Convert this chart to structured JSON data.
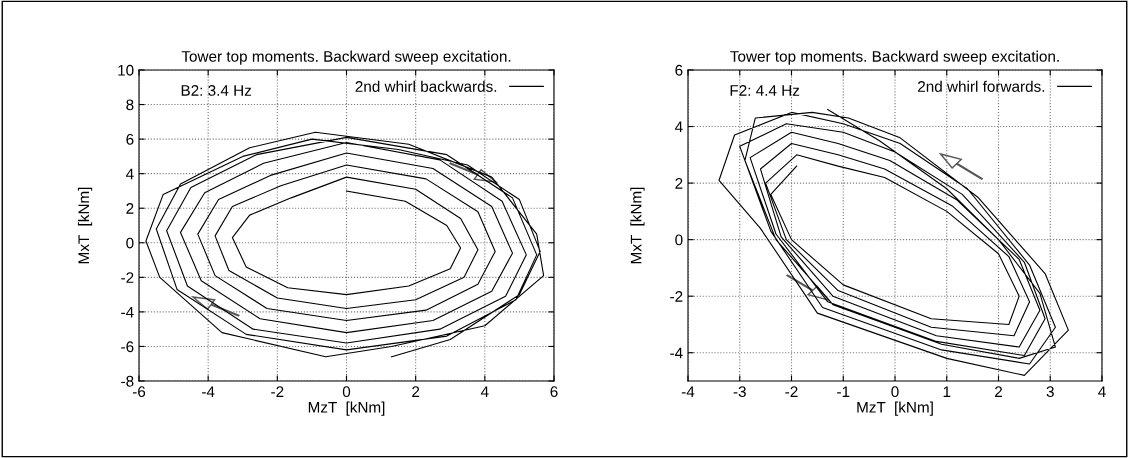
{
  "chart_data": [
    {
      "type": "line",
      "title": "Tower top moments. Backward sweep excitation.",
      "xlabel": "MzT  [kNm]",
      "ylabel": "MxT  [kNm]",
      "annotations": [
        "B2: 3.4 Hz"
      ],
      "xlim": [
        -6,
        6
      ],
      "ylim": [
        -8,
        10
      ],
      "xticks": [
        -6,
        -4,
        -2,
        0,
        2,
        4,
        6
      ],
      "yticks": [
        -8,
        -6,
        -4,
        -2,
        0,
        2,
        4,
        6,
        8,
        10
      ],
      "grid": true,
      "legend": "top right",
      "series": [
        {
          "name": "2nd whirl backwards.",
          "color": "#000000",
          "x": [
            0,
            1.7,
            2.9,
            3.3,
            3.0,
            1.8,
            0,
            -1.7,
            -2.9,
            -3.3,
            -2.8,
            -1.6,
            0,
            2.0,
            3.3,
            3.8,
            3.4,
            2.0,
            0,
            -2.0,
            -3.4,
            -3.8,
            -3.3,
            -1.9,
            0,
            2.3,
            3.8,
            4.3,
            3.8,
            2.3,
            0,
            -2.3,
            -3.8,
            -4.3,
            -3.7,
            -2.2,
            0,
            2.5,
            4.2,
            4.8,
            4.2,
            2.5,
            0,
            -2.5,
            -4.2,
            -4.8,
            -4.1,
            -2.4,
            0,
            2.7,
            4.5,
            5.2,
            4.6,
            2.7,
            0,
            -2.7,
            -4.6,
            -5.2,
            -4.5,
            -2.6,
            0,
            2.9,
            4.8,
            5.5,
            4.9,
            2.9,
            0,
            -2.9,
            -4.9,
            -5.5,
            -4.8,
            -2.8,
            -0.9,
            1.8,
            4.2,
            5.5,
            5.7,
            4.0,
            1.3,
            -0.6,
            -3.6,
            -5.4,
            -5.8,
            -5.3,
            -3.0,
            -1.0,
            1.5,
            3.5,
            5.0,
            5.6,
            5.0,
            3.0,
            1.3
          ],
          "values": [
            3.0,
            2.4,
            1.0,
            -0.3,
            -1.5,
            -2.5,
            -3.0,
            -2.6,
            -1.4,
            0.3,
            1.6,
            2.6,
            3.8,
            3.1,
            1.4,
            -0.4,
            -2.0,
            -3.3,
            -3.8,
            -3.2,
            -1.6,
            0.4,
            2.1,
            3.3,
            4.5,
            3.7,
            1.8,
            -0.5,
            -2.4,
            -3.9,
            -4.5,
            -3.8,
            -1.9,
            0.5,
            2.5,
            3.9,
            5.2,
            4.3,
            2.1,
            -0.6,
            -2.8,
            -4.5,
            -5.2,
            -4.4,
            -2.2,
            0.6,
            2.9,
            4.6,
            5.8,
            4.8,
            2.4,
            -0.7,
            -3.1,
            -5.0,
            -5.8,
            -5.0,
            -2.5,
            0.7,
            3.2,
            5.1,
            6.1,
            5.1,
            2.6,
            -0.7,
            -3.3,
            -5.4,
            -6.2,
            -5.3,
            -2.7,
            0.8,
            3.4,
            5.5,
            6.4,
            5.7,
            3.8,
            0.5,
            -1.9,
            -4.8,
            -6.0,
            -6.6,
            -5.2,
            -2.0,
            0.1,
            2.8,
            5.0,
            6.0,
            5.4,
            4.5,
            2.5,
            -0.5,
            -3.0,
            -5.6,
            -6.6
          ]
        }
      ]
    },
    {
      "type": "line",
      "title": "Tower top moments. Backward sweep excitation.",
      "xlabel": "MzT  [kNm]",
      "ylabel": "MxT  [kNm]",
      "annotations": [
        "F2: 4.4 Hz"
      ],
      "xlim": [
        -4,
        4
      ],
      "ylim": [
        -5,
        6
      ],
      "xticks": [
        -4,
        -3,
        -2,
        -1,
        0,
        1,
        2,
        3,
        4
      ],
      "yticks": [
        -4,
        -2,
        0,
        2,
        4,
        6
      ],
      "grid": true,
      "legend": "top right",
      "series": [
        {
          "name": "2nd whirl forwards.",
          "color": "#000000",
          "x": [
            -1.9,
            -2.4,
            -2.0,
            -1.0,
            0.7,
            2.2,
            2.4,
            2.0,
            1.0,
            -0.2,
            -1.1,
            -1.9,
            -2.5,
            -2.1,
            -1.1,
            0.7,
            2.3,
            2.6,
            2.2,
            1.1,
            -0.2,
            -1.1,
            -2.0,
            -2.6,
            -2.2,
            -1.2,
            0.8,
            2.4,
            2.8,
            2.4,
            1.2,
            -0.1,
            -1.1,
            -2.0,
            -2.8,
            -2.3,
            -1.3,
            0.8,
            2.5,
            2.9,
            2.5,
            1.3,
            0.0,
            -1.0,
            -2.1,
            -3.0,
            -2.4,
            -1.4,
            0.9,
            2.6,
            3.1,
            2.6,
            1.4,
            0.1,
            -1.0,
            -2.0,
            -3.1,
            -3.4,
            -2.6,
            -1.5,
            1.0,
            2.5,
            3.35,
            2.9,
            1.6,
            0.1,
            -0.9,
            -1.6,
            -2.7,
            -2.9,
            -2.3,
            -1.2,
            0.9,
            2.4,
            3.1,
            2.8,
            2.0,
            1.0,
            -0.3,
            -1.3
          ],
          "values": [
            2.6,
            1.6,
            0.0,
            -1.6,
            -2.8,
            -3.0,
            -2.0,
            -0.5,
            1.0,
            2.2,
            2.6,
            3.0,
            2.0,
            0.0,
            -1.8,
            -3.1,
            -3.4,
            -2.2,
            -0.6,
            1.2,
            2.5,
            3.0,
            3.4,
            2.5,
            0.1,
            -2.0,
            -3.4,
            -3.8,
            -2.5,
            -0.7,
            1.4,
            2.8,
            3.4,
            3.8,
            2.9,
            0.2,
            -2.2,
            -3.6,
            -4.1,
            -2.8,
            -0.8,
            1.6,
            3.1,
            3.8,
            4.1,
            3.3,
            0.3,
            -2.4,
            -3.9,
            -4.4,
            -3.1,
            -0.9,
            1.8,
            3.4,
            4.1,
            4.5,
            3.7,
            2.1,
            0.4,
            -2.6,
            -4.2,
            -4.8,
            -3.2,
            -1.2,
            1.5,
            3.6,
            4.3,
            4.5,
            4.3,
            2.8,
            0.0,
            -2.3,
            -3.7,
            -4.2,
            -3.8,
            -1.9,
            0.0,
            1.8,
            3.5,
            4.6
          ]
        }
      ]
    }
  ]
}
